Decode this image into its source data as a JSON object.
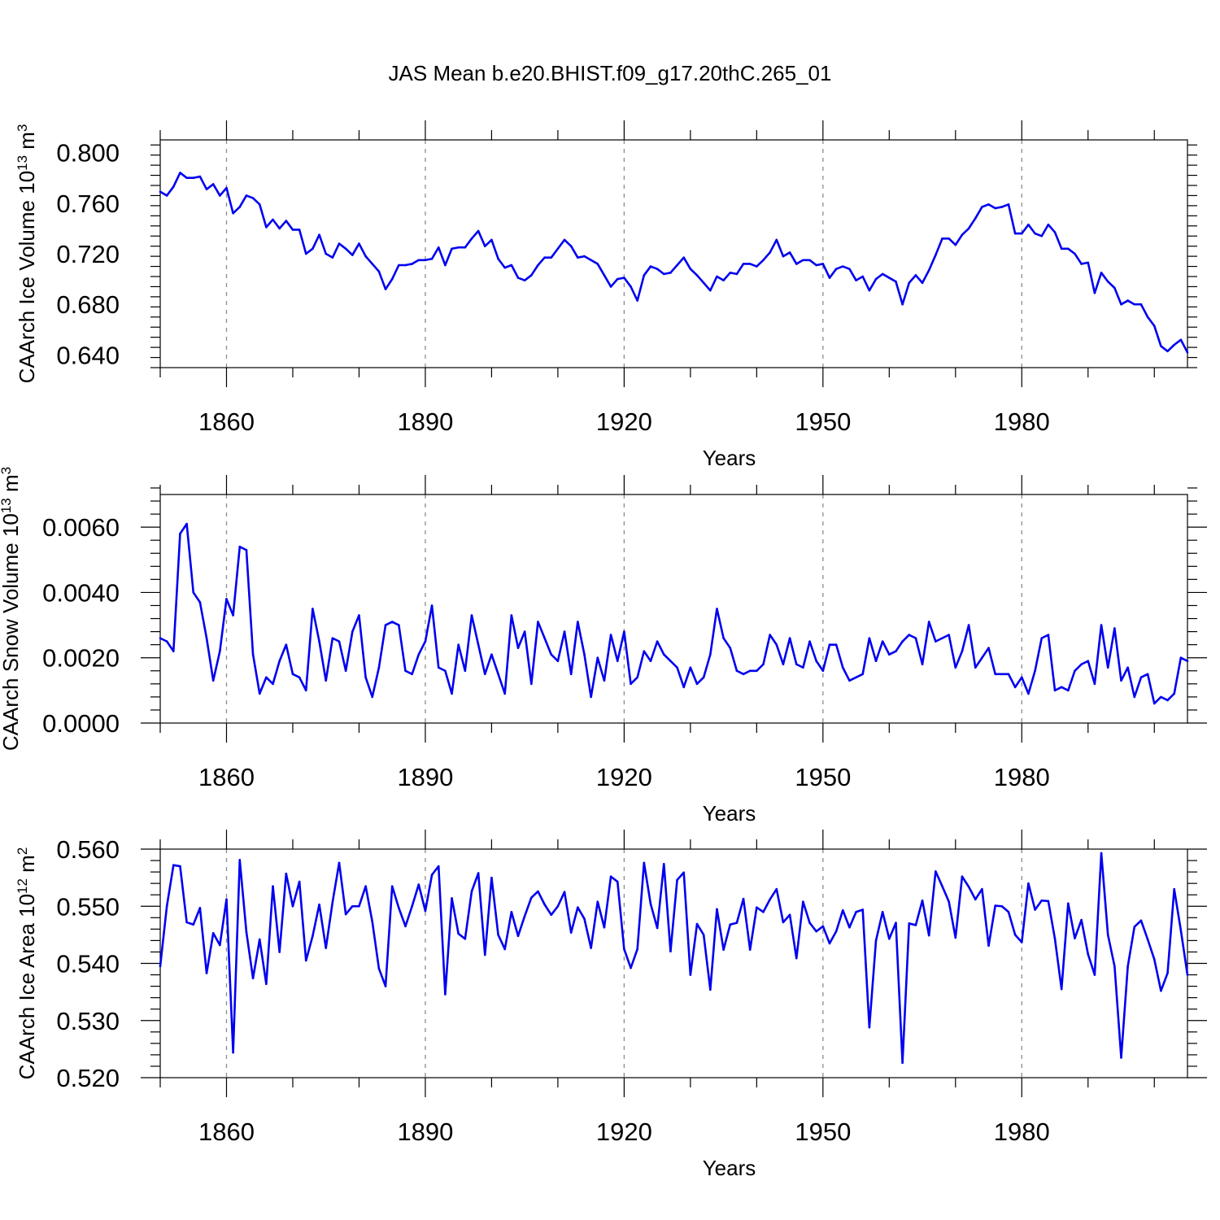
{
  "chart_data": {
    "title": "JAS Mean b.e20.BHIST.f09_g17.20thC.265_01",
    "panels": [
      {
        "type": "line",
        "ylabel_parts": [
          "CAArch Ice Volume 10",
          "13",
          " m",
          "3"
        ],
        "xlabel": "Years",
        "xlim": [
          1850,
          2005
        ],
        "ylim": [
          0.63,
          0.81
        ],
        "x_ticks": [
          "1860",
          "1890",
          "1920",
          "1950",
          "1980"
        ],
        "y_ticks": [
          "0.640",
          "0.680",
          "0.720",
          "0.760",
          "0.800"
        ],
        "grid": "vertical dashed at major x ticks",
        "line_color": "#0000f0",
        "x_start": 1850,
        "values": [
          0.769,
          0.766,
          0.773,
          0.784,
          0.78,
          0.78,
          0.781,
          0.771,
          0.775,
          0.766,
          0.772,
          0.752,
          0.757,
          0.766,
          0.764,
          0.759,
          0.741,
          0.747,
          0.74,
          0.746,
          0.739,
          0.739,
          0.72,
          0.724,
          0.735,
          0.72,
          0.717,
          0.728,
          0.724,
          0.719,
          0.728,
          0.718,
          0.712,
          0.706,
          0.692,
          0.7,
          0.711,
          0.711,
          0.712,
          0.715,
          0.715,
          0.716,
          0.725,
          0.711,
          0.724,
          0.725,
          0.725,
          0.732,
          0.738,
          0.726,
          0.731,
          0.716,
          0.709,
          0.711,
          0.701,
          0.699,
          0.703,
          0.711,
          0.717,
          0.717,
          0.724,
          0.731,
          0.726,
          0.717,
          0.718,
          0.715,
          0.712,
          0.703,
          0.694,
          0.7,
          0.701,
          0.694,
          0.683,
          0.703,
          0.71,
          0.708,
          0.704,
          0.705,
          0.711,
          0.717,
          0.708,
          0.703,
          0.697,
          0.691,
          0.702,
          0.699,
          0.705,
          0.704,
          0.712,
          0.712,
          0.71,
          0.715,
          0.721,
          0.731,
          0.718,
          0.721,
          0.712,
          0.715,
          0.715,
          0.711,
          0.712,
          0.701,
          0.708,
          0.71,
          0.708,
          0.699,
          0.702,
          0.691,
          0.7,
          0.704,
          0.701,
          0.698,
          0.68,
          0.697,
          0.703,
          0.697,
          0.707,
          0.719,
          0.732,
          0.732,
          0.727,
          0.735,
          0.74,
          0.748,
          0.757,
          0.759,
          0.756,
          0.757,
          0.759,
          0.736,
          0.736,
          0.743,
          0.736,
          0.734,
          0.743,
          0.737,
          0.724,
          0.724,
          0.72,
          0.712,
          0.713,
          0.689,
          0.705,
          0.698,
          0.693,
          0.68,
          0.683,
          0.68,
          0.68,
          0.67,
          0.663,
          0.647,
          0.643,
          0.648,
          0.652,
          0.642
        ]
      },
      {
        "type": "line",
        "ylabel_parts": [
          "CAArch Snow Volume 10",
          "13",
          " m",
          "3"
        ],
        "xlabel": "Years",
        "xlim": [
          1850,
          2005
        ],
        "ylim": [
          0.0,
          0.007
        ],
        "x_ticks": [
          "1860",
          "1890",
          "1920",
          "1950",
          "1980"
        ],
        "y_ticks": [
          "0.0000",
          "0.0020",
          "0.0040",
          "0.0060"
        ],
        "grid": "vertical dashed at major x ticks",
        "line_color": "#0000f0",
        "x_start": 1850,
        "values": [
          0.0026,
          0.0025,
          0.0022,
          0.0058,
          0.0061,
          0.004,
          0.0037,
          0.0026,
          0.0013,
          0.0022,
          0.0038,
          0.0033,
          0.0054,
          0.0053,
          0.0021,
          0.0009,
          0.0014,
          0.0012,
          0.0019,
          0.0024,
          0.0015,
          0.0014,
          0.001,
          0.0035,
          0.0025,
          0.0013,
          0.0026,
          0.0025,
          0.0016,
          0.0028,
          0.0033,
          0.0014,
          0.0008,
          0.0017,
          0.003,
          0.0031,
          0.003,
          0.0016,
          0.0015,
          0.0021,
          0.0025,
          0.0036,
          0.0017,
          0.0016,
          0.0009,
          0.0024,
          0.0016,
          0.0033,
          0.0024,
          0.0015,
          0.0021,
          0.0015,
          0.0009,
          0.0033,
          0.0023,
          0.0028,
          0.0012,
          0.0031,
          0.0026,
          0.0021,
          0.0019,
          0.0028,
          0.0015,
          0.0031,
          0.0021,
          0.0008,
          0.002,
          0.0013,
          0.0027,
          0.0019,
          0.0028,
          0.0012,
          0.0014,
          0.0022,
          0.0019,
          0.0025,
          0.0021,
          0.0019,
          0.0017,
          0.0011,
          0.0017,
          0.0012,
          0.0014,
          0.0021,
          0.0035,
          0.0026,
          0.0023,
          0.0016,
          0.0015,
          0.0016,
          0.0016,
          0.0018,
          0.0027,
          0.0024,
          0.0018,
          0.0026,
          0.0018,
          0.0017,
          0.0025,
          0.0019,
          0.0016,
          0.0024,
          0.0024,
          0.0017,
          0.0013,
          0.0014,
          0.0015,
          0.0026,
          0.0019,
          0.0025,
          0.0021,
          0.0022,
          0.0025,
          0.0027,
          0.0026,
          0.0018,
          0.0031,
          0.0025,
          0.0026,
          0.0027,
          0.0017,
          0.0022,
          0.003,
          0.0017,
          0.002,
          0.0023,
          0.0015,
          0.0015,
          0.0015,
          0.0011,
          0.0014,
          0.0009,
          0.0016,
          0.0026,
          0.0027,
          0.001,
          0.0011,
          0.001,
          0.0016,
          0.0018,
          0.0019,
          0.0012,
          0.003,
          0.0017,
          0.0029,
          0.0013,
          0.0017,
          0.0008,
          0.0014,
          0.0015,
          0.0006,
          0.0008,
          0.0007,
          0.0009,
          0.002,
          0.0019
        ]
      },
      {
        "type": "line",
        "ylabel_parts": [
          "CAArch Ice Area 10",
          "12",
          " m",
          "2"
        ],
        "xlabel": "Years",
        "xlim": [
          1850,
          2005
        ],
        "ylim": [
          0.52,
          0.56
        ],
        "x_ticks": [
          "1860",
          "1890",
          "1920",
          "1950",
          "1980"
        ],
        "y_ticks": [
          "0.520",
          "0.530",
          "0.540",
          "0.550",
          "0.560"
        ],
        "grid": "vertical dashed at major x ticks",
        "line_color": "#0000f0",
        "x_start": 1850,
        "values": [
          0.5395,
          0.55,
          0.5572,
          0.557,
          0.5472,
          0.5468,
          0.5497,
          0.5383,
          0.5453,
          0.5432,
          0.5512,
          0.5244,
          0.5581,
          0.5455,
          0.5374,
          0.5442,
          0.5364,
          0.5535,
          0.542,
          0.5557,
          0.55,
          0.5543,
          0.5405,
          0.5448,
          0.5503,
          0.5427,
          0.5507,
          0.5576,
          0.5486,
          0.55,
          0.55,
          0.5535,
          0.5473,
          0.5391,
          0.536,
          0.5535,
          0.5497,
          0.5465,
          0.55,
          0.5538,
          0.5492,
          0.5555,
          0.557,
          0.5346,
          0.5514,
          0.5452,
          0.5443,
          0.5526,
          0.5558,
          0.5415,
          0.555,
          0.545,
          0.5425,
          0.549,
          0.5448,
          0.5483,
          0.5515,
          0.5526,
          0.5503,
          0.5485,
          0.55,
          0.5525,
          0.5454,
          0.5498,
          0.5478,
          0.5427,
          0.5508,
          0.5463,
          0.5552,
          0.5543,
          0.5425,
          0.5392,
          0.5425,
          0.5576,
          0.5504,
          0.5462,
          0.5574,
          0.5421,
          0.5546,
          0.5559,
          0.538,
          0.5469,
          0.545,
          0.5354,
          0.5495,
          0.5424,
          0.5468,
          0.5471,
          0.5513,
          0.5424,
          0.5498,
          0.549,
          0.5512,
          0.553,
          0.5472,
          0.5485,
          0.5409,
          0.5508,
          0.5471,
          0.5456,
          0.5465,
          0.5435,
          0.5456,
          0.5493,
          0.5463,
          0.549,
          0.5494,
          0.5288,
          0.544,
          0.549,
          0.5443,
          0.5471,
          0.5226,
          0.547,
          0.5467,
          0.551,
          0.5449,
          0.5561,
          0.5535,
          0.5508,
          0.5445,
          0.5552,
          0.5534,
          0.5512,
          0.553,
          0.5431,
          0.5501,
          0.55,
          0.549,
          0.545,
          0.5437,
          0.554,
          0.5494,
          0.551,
          0.5509,
          0.5443,
          0.5355,
          0.5505,
          0.5444,
          0.5476,
          0.5416,
          0.538,
          0.5593,
          0.545,
          0.5395,
          0.5235,
          0.5395,
          0.5464,
          0.5475,
          0.5442,
          0.5407,
          0.5352,
          0.5383,
          0.553,
          0.5458,
          0.538
        ]
      }
    ]
  }
}
